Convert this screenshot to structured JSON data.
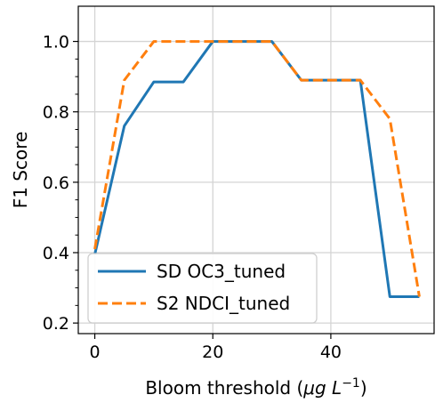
{
  "chart_data": {
    "type": "line",
    "xlabel": "Bloom threshold",
    "xlabel_unit_base": "μg L",
    "xlabel_unit_exp": "−1",
    "ylabel": "F1 Score",
    "xlim": [
      -2.8,
      57.5
    ],
    "ylim": [
      0.17,
      1.1
    ],
    "xticks": [
      0,
      20,
      40
    ],
    "yticks": [
      0.2,
      0.4,
      0.6,
      0.8,
      1.0
    ],
    "xtick_labels": [
      "0",
      "20",
      "40"
    ],
    "ytick_labels": [
      "0.2",
      "0.4",
      "0.6",
      "0.8",
      "1.0"
    ],
    "grid": true,
    "legend_position": "lower-left",
    "series": [
      {
        "name": "SD OC3_tuned",
        "style": "solid",
        "color": "#1f77b4",
        "x": [
          0,
          5,
          10,
          15,
          20,
          25,
          30,
          35,
          40,
          45,
          50,
          55
        ],
        "y": [
          0.395,
          0.76,
          0.885,
          0.885,
          1.0,
          1.0,
          1.0,
          0.89,
          0.89,
          0.89,
          0.275,
          0.275
        ]
      },
      {
        "name": "S2 NDCI_tuned",
        "style": "dashed",
        "color": "#ff7f0e",
        "x": [
          0,
          5,
          10,
          15,
          20,
          25,
          30,
          35,
          40,
          45,
          50,
          55
        ],
        "y": [
          0.41,
          0.89,
          1.0,
          1.0,
          1.0,
          1.0,
          1.0,
          0.89,
          0.89,
          0.89,
          0.78,
          0.275
        ]
      }
    ]
  }
}
